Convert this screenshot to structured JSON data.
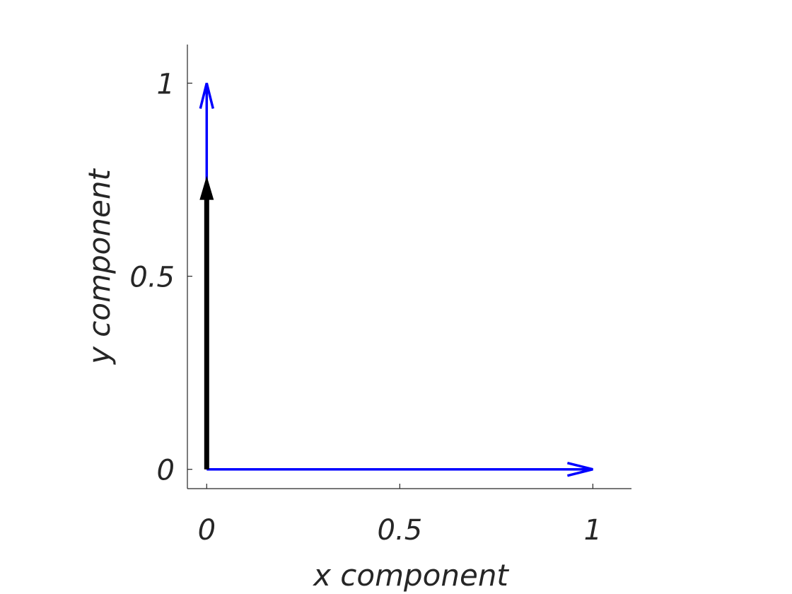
{
  "chart_data": {
    "type": "quiver",
    "title": "",
    "xlabel": "x component",
    "ylabel": "y component",
    "xlim": [
      -0.05,
      1.1
    ],
    "ylim": [
      -0.05,
      1.1
    ],
    "x_ticks": [
      {
        "value": 0,
        "label": "0"
      },
      {
        "value": 0.5,
        "label": "0.5"
      },
      {
        "value": 1,
        "label": "1"
      }
    ],
    "y_ticks": [
      {
        "value": 0,
        "label": "0"
      },
      {
        "value": 0.5,
        "label": "0.5"
      },
      {
        "value": 1,
        "label": "1"
      }
    ],
    "grid": false,
    "vectors": [
      {
        "name": "",
        "x0": 0,
        "y0": 0,
        "dx": 0,
        "dy": 1,
        "color": "#0000ff",
        "style": "open-head"
      },
      {
        "name": "",
        "x0": 0,
        "y0": 0,
        "dx": 1,
        "dy": 0,
        "color": "#0000ff",
        "style": "open-head"
      },
      {
        "name": "",
        "x0": 0,
        "y0": 0,
        "dx": 0,
        "dy": 0.76,
        "color": "#000000",
        "style": "filled-head"
      }
    ]
  }
}
